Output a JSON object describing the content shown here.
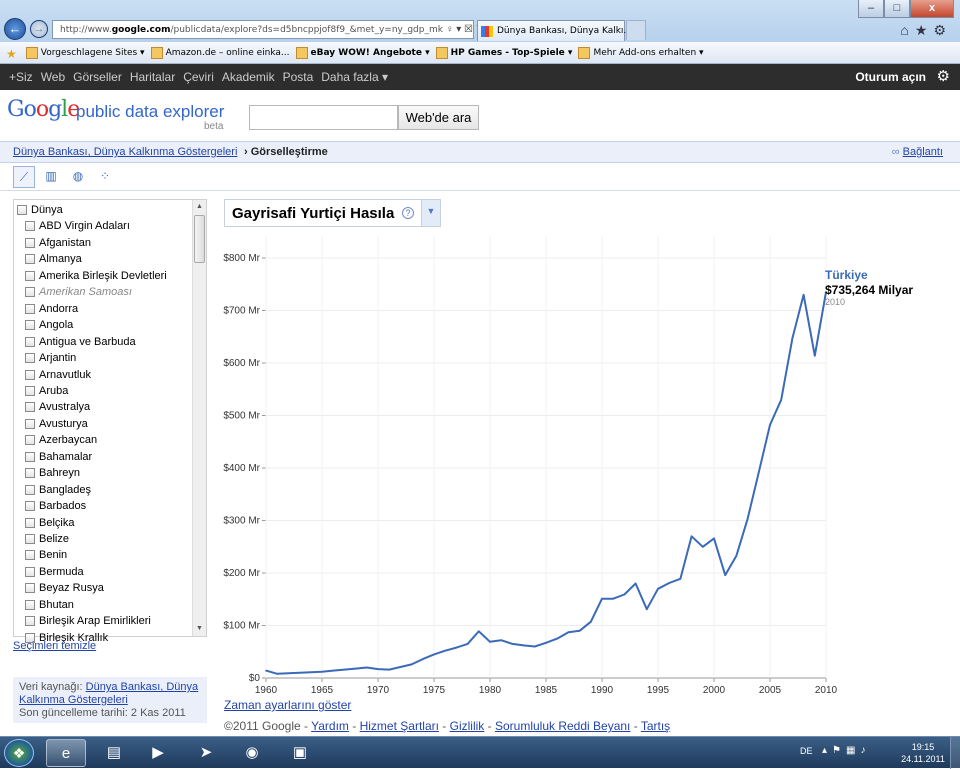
{
  "browser": {
    "url_prefix": "http://www.",
    "url_domain": "google.com",
    "url_rest": "/publicdata/explore?ds=d5bncppjof8f9_&met_y=ny_gdp_mk",
    "url_tools": "♀ ▾ ☒ ↻ ✕",
    "tab_title": "Dünya Bankası, Dünya Kalkı...",
    "tab_close": "×",
    "window_buttons": [
      "–",
      "□",
      "x"
    ]
  },
  "favorites": [
    {
      "label": "Vorgeschlagene Sites ▾",
      "bold": false
    },
    {
      "label": "Amazon.de – online einka...",
      "bold": false
    },
    {
      "label": "eBay WOW! Angebote ▾",
      "bold": true
    },
    {
      "label": "HP Games - Top-Spiele ▾",
      "bold": true
    },
    {
      "label": "Mehr Add-ons erhalten ▾",
      "bold": false
    }
  ],
  "gbar": {
    "items": [
      "+Siz",
      "Web",
      "Görseller",
      "Haritalar",
      "Çeviri",
      "Akademik",
      "Posta",
      "Daha fazla ▾"
    ],
    "signin": "Oturum açın"
  },
  "header": {
    "logo_letters": [
      "Go",
      "o",
      "g",
      "l",
      "e"
    ],
    "product": "public data explorer",
    "beta": "beta",
    "search_button": "Web'de ara"
  },
  "breadcrumb": {
    "link": "Dünya Bankası, Dünya Kalkınma Göstergeleri",
    "separator": " › ",
    "current": "Görselleştirme",
    "link_right": "Bağlantı"
  },
  "countries": [
    {
      "label": "Dünya",
      "dim": false,
      "indent": false
    },
    {
      "label": "ABD Virgin Adaları",
      "dim": false,
      "indent": true
    },
    {
      "label": "Afganistan",
      "dim": false,
      "indent": true
    },
    {
      "label": "Almanya",
      "dim": false,
      "indent": true
    },
    {
      "label": "Amerika Birleşik Devletleri",
      "dim": false,
      "indent": true
    },
    {
      "label": "Amerikan Samoası",
      "dim": true,
      "indent": true
    },
    {
      "label": "Andorra",
      "dim": false,
      "indent": true
    },
    {
      "label": "Angola",
      "dim": false,
      "indent": true
    },
    {
      "label": "Antigua ve Barbuda",
      "dim": false,
      "indent": true
    },
    {
      "label": "Arjantin",
      "dim": false,
      "indent": true
    },
    {
      "label": "Arnavutluk",
      "dim": false,
      "indent": true
    },
    {
      "label": "Aruba",
      "dim": false,
      "indent": true
    },
    {
      "label": "Avustralya",
      "dim": false,
      "indent": true
    },
    {
      "label": "Avusturya",
      "dim": false,
      "indent": true
    },
    {
      "label": "Azerbaycan",
      "dim": false,
      "indent": true
    },
    {
      "label": "Bahamalar",
      "dim": false,
      "indent": true
    },
    {
      "label": "Bahreyn",
      "dim": false,
      "indent": true
    },
    {
      "label": "Bangladeş",
      "dim": false,
      "indent": true
    },
    {
      "label": "Barbados",
      "dim": false,
      "indent": true
    },
    {
      "label": "Belçika",
      "dim": false,
      "indent": true
    },
    {
      "label": "Belize",
      "dim": false,
      "indent": true
    },
    {
      "label": "Benin",
      "dim": false,
      "indent": true
    },
    {
      "label": "Bermuda",
      "dim": false,
      "indent": true
    },
    {
      "label": "Beyaz Rusya",
      "dim": false,
      "indent": true
    },
    {
      "label": "Bhutan",
      "dim": false,
      "indent": true
    },
    {
      "label": "Birleşik Arap Emirlikleri",
      "dim": false,
      "indent": true
    },
    {
      "label": "Birleşik Krallık",
      "dim": false,
      "indent": true
    }
  ],
  "sidebar": {
    "clear_selection": "Seçimleri temizle",
    "source_label": "Veri kaynağı:",
    "source_link": "Dünya Bankası, Dünya Kalkınma Göstergeleri",
    "updated": "Son güncelleme tarihi: 2 Kas 2011"
  },
  "metric": {
    "title": "Gayrisafi Yurtiçi Hasıla",
    "help": "?"
  },
  "legend": {
    "name": "Türkiye",
    "value": "$735,264 Milyar",
    "year": "2010"
  },
  "chart_data": {
    "type": "line",
    "ylim": [
      0,
      850
    ],
    "xlim": [
      1960,
      2010
    ],
    "yticks": [
      {
        "value": 0,
        "label": "$0"
      },
      {
        "value": 100,
        "label": "$100 Mr"
      },
      {
        "value": 200,
        "label": "$200 Mr"
      },
      {
        "value": 300,
        "label": "$300 Mr"
      },
      {
        "value": 400,
        "label": "$400 Mr"
      },
      {
        "value": 500,
        "label": "$500 Mr"
      },
      {
        "value": 600,
        "label": "$600 Mr"
      },
      {
        "value": 700,
        "label": "$700 Mr"
      },
      {
        "value": 800,
        "label": "$800 Mr"
      }
    ],
    "xticks": [
      1960,
      1965,
      1970,
      1975,
      1980,
      1985,
      1990,
      1995,
      2000,
      2005,
      2010
    ],
    "series": [
      {
        "name": "Türkiye",
        "color": "#3a6ab8",
        "x": [
          1960,
          1961,
          1962,
          1963,
          1964,
          1965,
          1966,
          1967,
          1968,
          1969,
          1970,
          1971,
          1972,
          1973,
          1974,
          1975,
          1976,
          1977,
          1978,
          1979,
          1980,
          1981,
          1982,
          1983,
          1984,
          1985,
          1986,
          1987,
          1988,
          1989,
          1990,
          1991,
          1992,
          1993,
          1994,
          1995,
          1996,
          1997,
          1998,
          1999,
          2000,
          2001,
          2002,
          2003,
          2004,
          2005,
          2006,
          2007,
          2008,
          2009,
          2010
        ],
        "y": [
          14,
          8,
          9,
          10,
          11,
          12,
          14,
          16,
          18,
          20,
          17,
          16,
          21,
          26,
          36,
          45,
          52,
          58,
          65,
          89,
          69,
          72,
          65,
          62,
          60,
          67,
          75,
          87,
          90,
          107,
          151,
          151,
          159,
          180,
          131,
          170,
          181,
          189,
          270,
          250,
          266,
          196,
          233,
          303,
          392,
          482,
          530,
          647,
          730,
          614,
          735
        ]
      }
    ]
  },
  "footer": {
    "time_settings": "Zaman ayarlarını göster",
    "copyright": "©2011 Google - ",
    "links": [
      "Yardım",
      "Hizmet Şartları",
      "Gizlilik",
      "Sorumluluk Reddi Beyanı",
      "Tartış"
    ],
    "sep": " - "
  },
  "taskbar": {
    "lang": "DE",
    "time": "19:15",
    "date": "24.11.2011"
  }
}
